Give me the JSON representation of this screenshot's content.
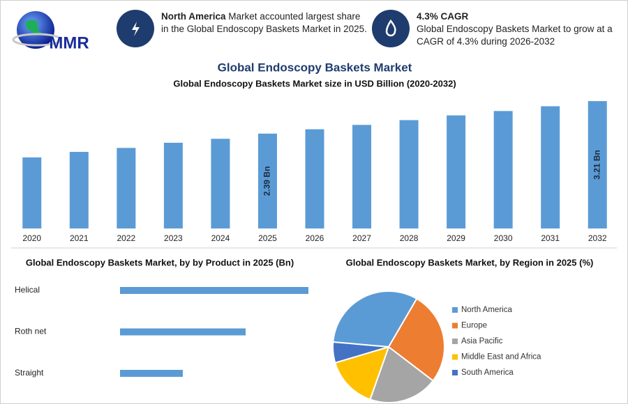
{
  "header": {
    "logo": "MMR",
    "info": [
      {
        "bold": "North America",
        "text": "Market accounted largest share in the Global Endoscopy Baskets Market in 2025."
      },
      {
        "bold": "4.3% CAGR",
        "text": "Global Endoscopy Baskets Market to grow at a CAGR of 4.3% during 2026-2032"
      }
    ],
    "title": "Global Endoscopy Baskets Market"
  },
  "chart_data": [
    {
      "type": "bar",
      "title": "Global Endoscopy Baskets Market size in USD Billion (2020-2032)",
      "categories": [
        "2020",
        "2021",
        "2022",
        "2023",
        "2024",
        "2025",
        "2026",
        "2027",
        "2028",
        "2029",
        "2030",
        "2031",
        "2032"
      ],
      "values": [
        1.79,
        1.93,
        2.03,
        2.16,
        2.26,
        2.39,
        2.5,
        2.61,
        2.73,
        2.85,
        2.96,
        3.08,
        3.21
      ],
      "value_labels": [
        null,
        null,
        null,
        null,
        null,
        "2.39 Bn",
        null,
        null,
        null,
        null,
        null,
        null,
        "3.21 Bn"
      ],
      "color": "#5b9bd5",
      "ylim": [
        0,
        3.3
      ]
    },
    {
      "type": "hbar",
      "title": "Global Endoscopy Baskets Market, by by Product in 2025 (Bn)",
      "categories": [
        "Helical",
        "Roth net",
        "Straight"
      ],
      "values": [
        1.2,
        0.8,
        0.4
      ],
      "color": "#5b9bd5",
      "xlim": [
        0,
        1.2
      ]
    },
    {
      "type": "pie",
      "title": "Global Endoscopy Baskets Market, by Region in 2025 (%)",
      "categories": [
        "North America",
        "Europe",
        "Asia Pacific",
        "Middle East and Africa",
        "South America"
      ],
      "values": [
        32,
        27,
        20,
        15,
        6
      ],
      "colors": [
        "#5b9bd5",
        "#ed7d31",
        "#a5a5a5",
        "#ffc000",
        "#4472c4"
      ],
      "legend": "right"
    }
  ]
}
